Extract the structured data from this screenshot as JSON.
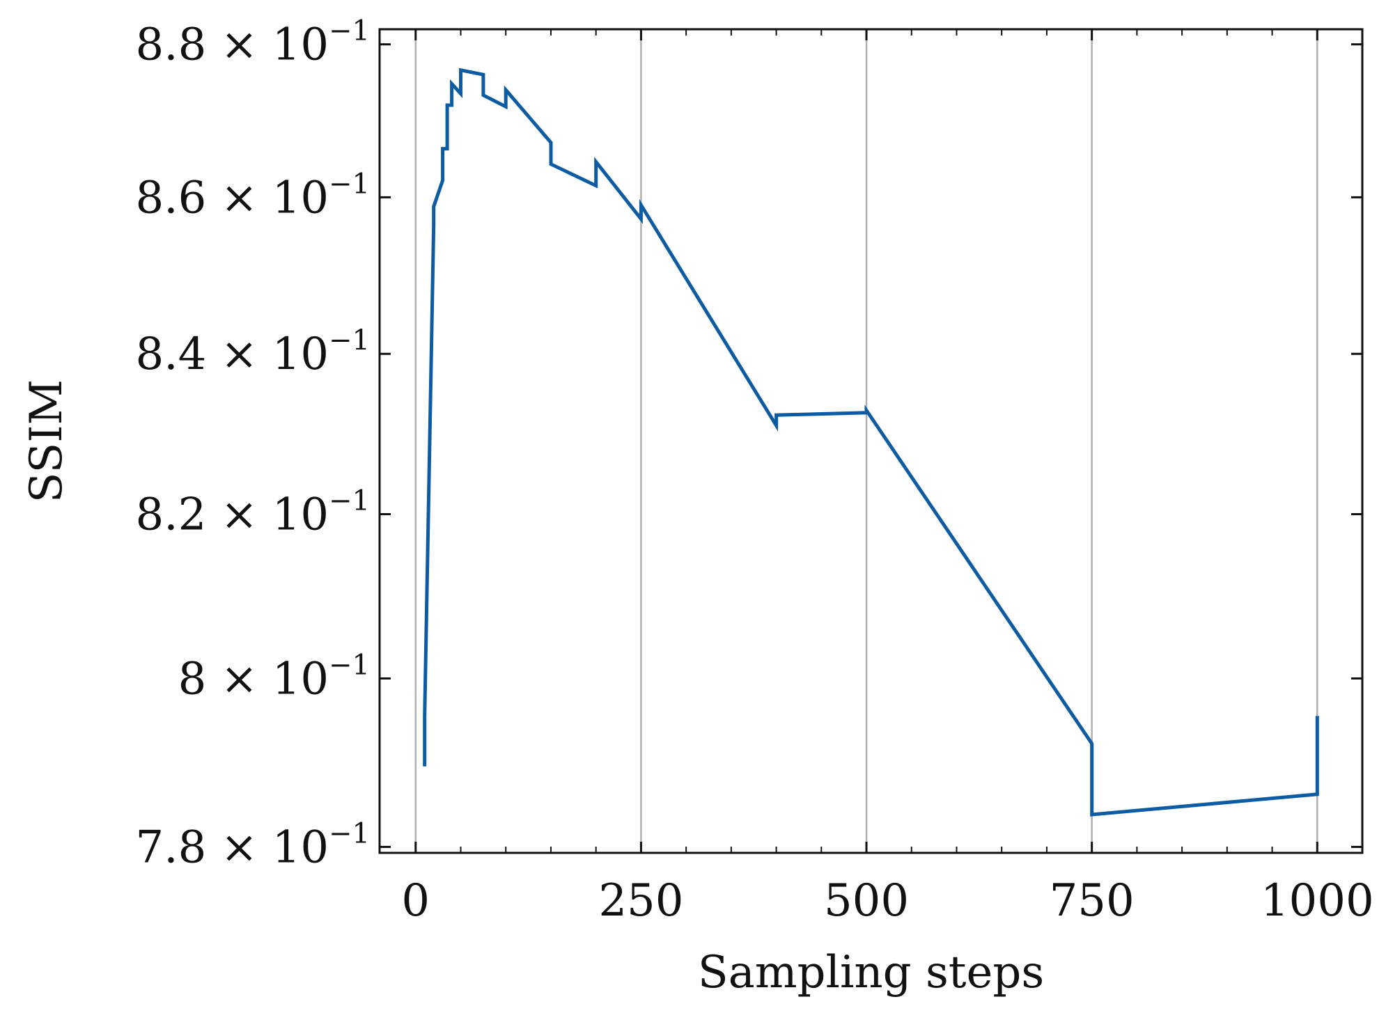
{
  "chart_data": {
    "type": "line",
    "xlabel": "Sampling steps",
    "ylabel": "SSIM",
    "xlim": [
      -40,
      1050
    ],
    "ylim": [
      0.7793,
      0.882
    ],
    "y_scale": "log",
    "x_ticks": [
      0,
      250,
      500,
      750,
      1000
    ],
    "x_tick_labels": [
      "0",
      "250",
      "500",
      "750",
      "1000"
    ],
    "y_ticks": [
      0.78,
      0.8,
      0.82,
      0.84,
      0.86,
      0.88
    ],
    "y_tick_labels": [
      {
        "mantissa": "7.8",
        "times": "×",
        "base": "10",
        "exponent": "−1"
      },
      {
        "mantissa": "8",
        "times": "×",
        "base": "10",
        "exponent": "−1"
      },
      {
        "mantissa": "8.2",
        "times": "×",
        "base": "10",
        "exponent": "−1"
      },
      {
        "mantissa": "8.4",
        "times": "×",
        "base": "10",
        "exponent": "−1"
      },
      {
        "mantissa": "8.6",
        "times": "×",
        "base": "10",
        "exponent": "−1"
      },
      {
        "mantissa": "8.8",
        "times": "×",
        "base": "10",
        "exponent": "−1"
      }
    ],
    "grid": {
      "x": true,
      "y": false
    },
    "legend": "none",
    "series": [
      {
        "color": "#0d5ba3",
        "x": [
          10,
          10,
          20,
          20,
          30,
          30,
          35,
          35,
          40,
          40,
          50,
          50,
          75,
          75,
          100,
          100,
          150,
          150,
          200,
          200,
          250,
          250,
          400,
          400,
          500,
          500,
          750,
          750,
          1000,
          1000
        ],
        "y": [
          0.7895,
          0.7955,
          0.8565,
          0.8588,
          0.8622,
          0.8663,
          0.8663,
          0.872,
          0.872,
          0.8748,
          0.8735,
          0.8766,
          0.876,
          0.8733,
          0.8718,
          0.874,
          0.8671,
          0.8643,
          0.8615,
          0.8646,
          0.8572,
          0.859,
          0.831,
          0.8323,
          0.8326,
          0.8329,
          0.7922,
          0.7838,
          0.7862,
          0.7955
        ]
      }
    ]
  },
  "colors": {
    "line": "#0d5ba3",
    "grid": "#b0b0b0",
    "axis": "#111111",
    "background": "#ffffff"
  }
}
